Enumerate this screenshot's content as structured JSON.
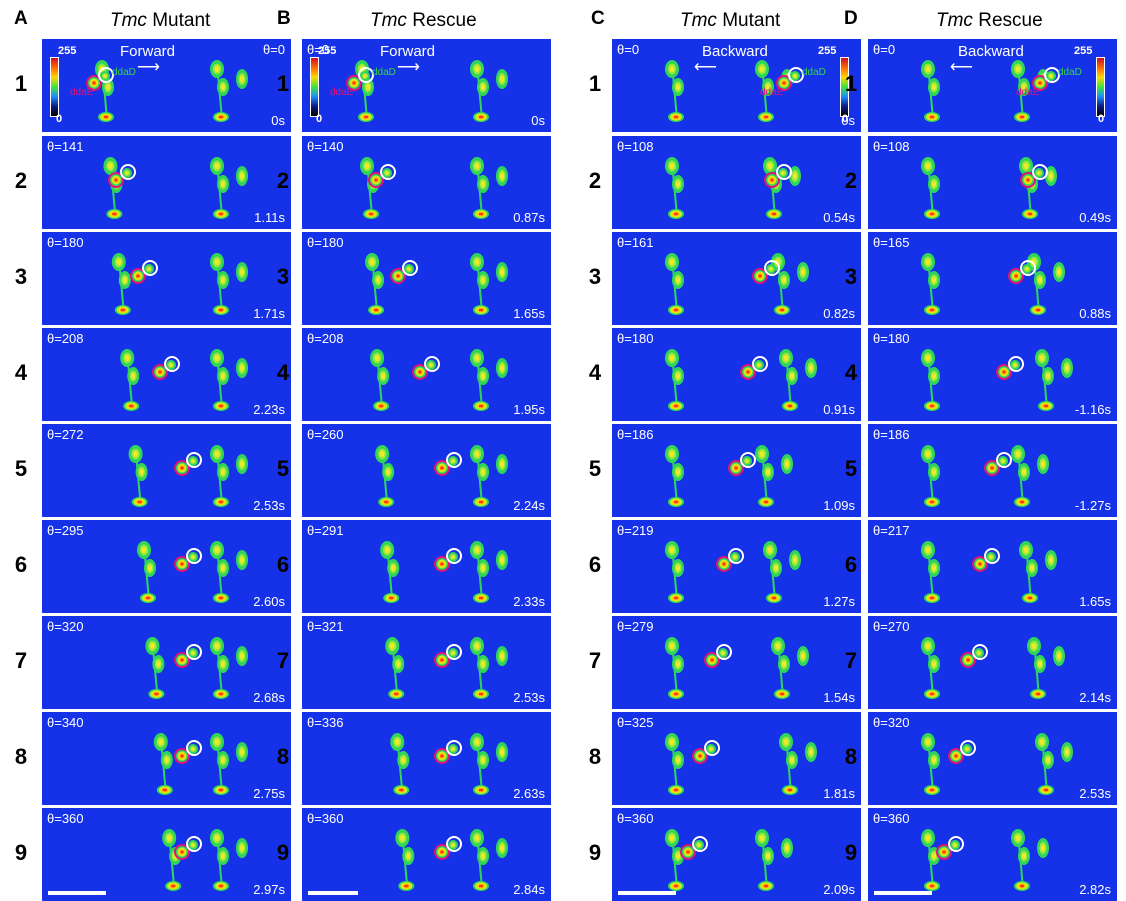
{
  "columns": [
    {
      "letter": "A",
      "gene": "Tmc",
      "condition": "Mutant",
      "direction": "Forward",
      "arrow": "⟶",
      "thetas": [
        "θ=0",
        "θ=141",
        "θ=180",
        "θ=208",
        "θ=272",
        "θ=295",
        "θ=320",
        "θ=340",
        "θ=360"
      ],
      "times": [
        "0s",
        "1.11s",
        "1.71s",
        "2.23s",
        "2.53s",
        "2.60s",
        "2.68s",
        "2.75s",
        "2.97s"
      ]
    },
    {
      "letter": "B",
      "gene": "Tmc",
      "condition": "Rescue",
      "direction": "Forward",
      "arrow": "⟶",
      "thetas": [
        "θ=0",
        "θ=140",
        "θ=180",
        "θ=208",
        "θ=260",
        "θ=291",
        "θ=321",
        "θ=336",
        "θ=360"
      ],
      "times": [
        "0s",
        "0.87s",
        "1.65s",
        "1.95s",
        "2.24s",
        "2.33s",
        "2.53s",
        "2.63s",
        "2.84s"
      ]
    },
    {
      "letter": "C",
      "gene": "Tmc",
      "condition": "Mutant",
      "direction": "Backward",
      "arrow": "⟵",
      "thetas": [
        "θ=0",
        "θ=108",
        "θ=161",
        "θ=180",
        "θ=186",
        "θ=219",
        "θ=279",
        "θ=325",
        "θ=360"
      ],
      "times": [
        "0s",
        "0.54s",
        "0.82s",
        "0.91s",
        "1.09s",
        "1.27s",
        "1.54s",
        "1.81s",
        "2.09s"
      ]
    },
    {
      "letter": "D",
      "gene": "Tmc",
      "condition": "Rescue",
      "direction": "Backward",
      "arrow": "⟵",
      "thetas": [
        "θ=0",
        "θ=108",
        "θ=165",
        "θ=180",
        "θ=186",
        "θ=217",
        "θ=270",
        "θ=320",
        "θ=360"
      ],
      "times": [
        "",
        "0.49s",
        "0.88s",
        "-1.16s",
        "-1.27s",
        "1.65s",
        "2.14s",
        "2.53s",
        "2.82s"
      ]
    }
  ],
  "row_numbers": [
    "1",
    "2",
    "3",
    "4",
    "5",
    "6",
    "7",
    "8",
    "9"
  ],
  "colorbar": {
    "max": "255",
    "min": "0"
  },
  "cell_labels": {
    "dorsal": "ddaD",
    "ventral": "ddaE"
  },
  "colors": {
    "background": "#1532e8",
    "ddaD_circle": "#ffffff",
    "ddaE_circle": "#e0127a",
    "ddaD_text": "#39d353",
    "ddaE_text": "#e0127a"
  }
}
